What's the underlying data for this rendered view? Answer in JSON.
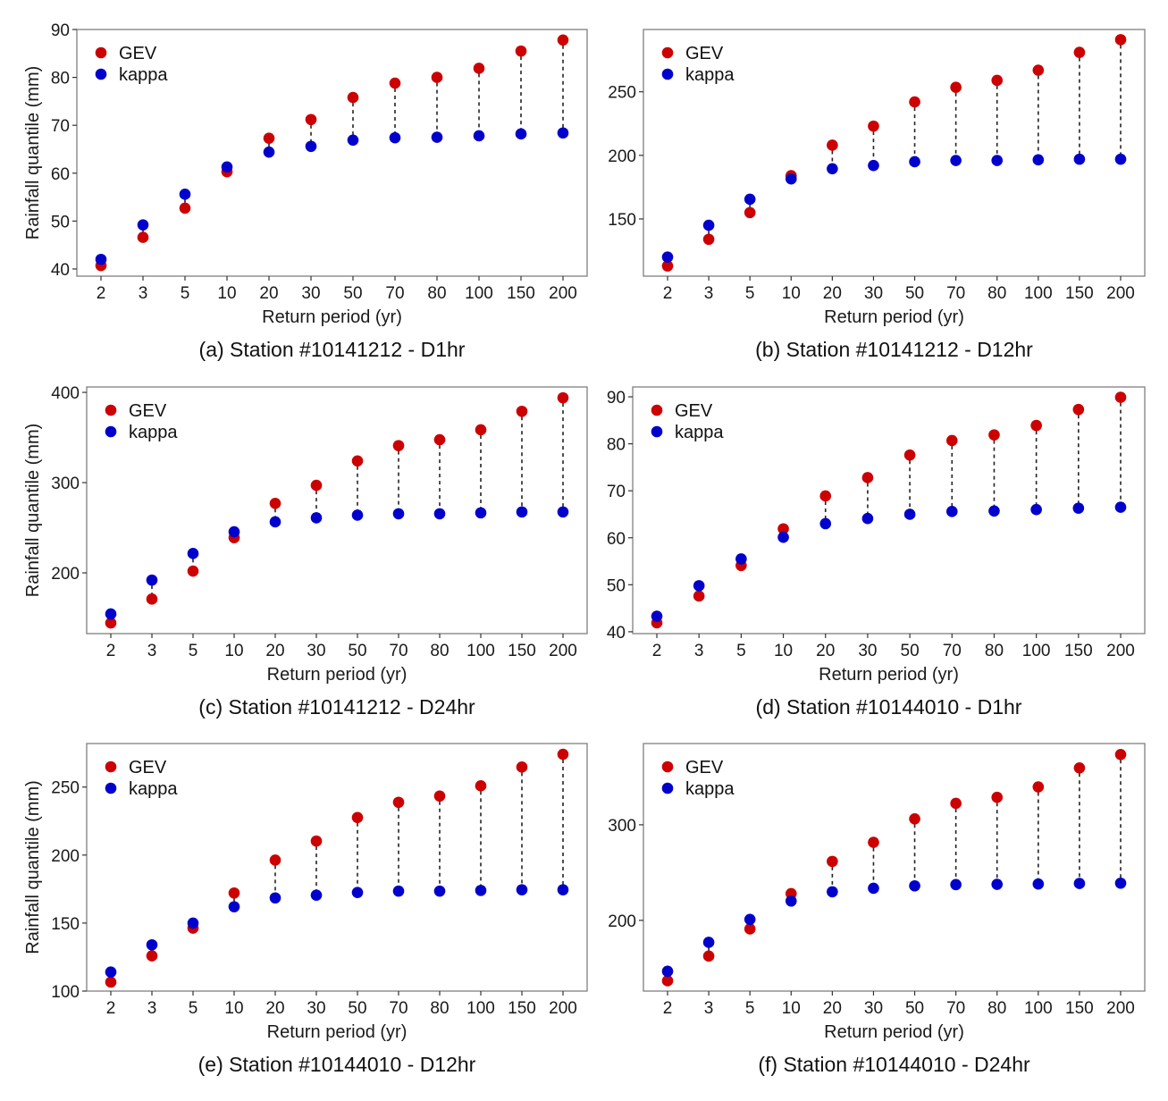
{
  "figure": {
    "x_axis_title": "Return period (yr)",
    "y_axis_title": "Rainfall quantile (mm)",
    "legend": [
      {
        "label": "GEV",
        "color": "#CC0000"
      },
      {
        "label": "kappa",
        "color": "#0000CC"
      }
    ],
    "connector_style": "dashed",
    "connector_color": "#222222"
  },
  "chart_data": [
    {
      "type": "scatter",
      "id": "a",
      "title": "(a) Station #10141212 - D1hr",
      "xlabel": "Return period (yr)",
      "ylabel": "Rainfall quantile (mm)",
      "show_ylabel": true,
      "categories": [
        "2",
        "3",
        "5",
        "10",
        "20",
        "30",
        "50",
        "70",
        "80",
        "100",
        "150",
        "200"
      ],
      "ylim": [
        38.5,
        90
      ],
      "yticks": [
        40,
        50,
        60,
        70,
        80,
        90
      ],
      "legend_position": "top-left",
      "grid": false,
      "series": [
        {
          "name": "GEV",
          "color": "#CC0000",
          "values": [
            40.7,
            46.6,
            52.7,
            60.3,
            67.3,
            71.2,
            75.8,
            78.8,
            80.0,
            81.9,
            85.5,
            87.8
          ]
        },
        {
          "name": "kappa",
          "color": "#0000CC",
          "values": [
            42.0,
            49.2,
            55.6,
            61.3,
            64.4,
            65.6,
            66.9,
            67.4,
            67.5,
            67.8,
            68.2,
            68.4
          ]
        }
      ]
    },
    {
      "type": "scatter",
      "id": "b",
      "title": "(b) Station #10141212 - D12hr",
      "xlabel": "Return period (yr)",
      "ylabel": "",
      "show_ylabel": false,
      "categories": [
        "2",
        "3",
        "5",
        "10",
        "20",
        "30",
        "50",
        "70",
        "80",
        "100",
        "150",
        "200"
      ],
      "ylim": [
        105,
        299
      ],
      "yticks": [
        150,
        200,
        250
      ],
      "legend_position": "top-left",
      "grid": false,
      "series": [
        {
          "name": "GEV",
          "color": "#CC0000",
          "values": [
            113,
            134,
            155,
            184,
            208,
            223,
            242,
            253.5,
            259,
            267,
            281,
            291
          ]
        },
        {
          "name": "kappa",
          "color": "#0000CC",
          "values": [
            120,
            145,
            165.5,
            181.5,
            189.5,
            192,
            195,
            196,
            196,
            196.5,
            197,
            197
          ]
        }
      ]
    },
    {
      "type": "scatter",
      "id": "c",
      "title": "(c) Station #10141212 - D24hr",
      "xlabel": "Return period (yr)",
      "ylabel": "Rainfall quantile (mm)",
      "show_ylabel": true,
      "categories": [
        "2",
        "3",
        "5",
        "10",
        "20",
        "30",
        "50",
        "70",
        "80",
        "100",
        "150",
        "200"
      ],
      "ylim": [
        132.7,
        406
      ],
      "yticks": [
        200,
        300,
        400
      ],
      "legend_position": "top-left",
      "grid": false,
      "series": [
        {
          "name": "GEV",
          "color": "#CC0000",
          "values": [
            144.5,
            171,
            202,
            239,
            277,
            297,
            324,
            341,
            347.5,
            358.5,
            379,
            394
          ]
        },
        {
          "name": "kappa",
          "color": "#0000CC",
          "values": [
            154.5,
            192,
            221.5,
            245.5,
            256.5,
            261,
            264,
            265.5,
            265.5,
            266.5,
            267.5,
            267.5
          ]
        }
      ]
    },
    {
      "type": "scatter",
      "id": "d",
      "title": "(d) Station #10144010 - D1hr",
      "xlabel": "Return period (yr)",
      "ylabel": "",
      "show_ylabel": false,
      "categories": [
        "2",
        "3",
        "5",
        "10",
        "20",
        "30",
        "50",
        "70",
        "80",
        "100",
        "150",
        "200"
      ],
      "ylim": [
        39.6,
        92.1
      ],
      "yticks": [
        40,
        50,
        60,
        70,
        80,
        90
      ],
      "legend_position": "top-left",
      "grid": false,
      "series": [
        {
          "name": "GEV",
          "color": "#CC0000",
          "values": [
            41.9,
            47.6,
            54.1,
            61.9,
            68.9,
            72.8,
            77.6,
            80.7,
            81.9,
            83.9,
            87.3,
            89.9
          ]
        },
        {
          "name": "kappa",
          "color": "#0000CC",
          "values": [
            43.3,
            49.8,
            55.5,
            60.1,
            63.0,
            64.1,
            65.0,
            65.6,
            65.7,
            66.0,
            66.3,
            66.5
          ]
        }
      ]
    },
    {
      "type": "scatter",
      "id": "e",
      "title": "(e) Station #10144010 - D12hr",
      "xlabel": "Return period (yr)",
      "ylabel": "Rainfall quantile (mm)",
      "show_ylabel": true,
      "categories": [
        "2",
        "3",
        "5",
        "10",
        "20",
        "30",
        "50",
        "70",
        "80",
        "100",
        "150",
        "200"
      ],
      "ylim": [
        100,
        282
      ],
      "yticks": [
        100,
        150,
        200,
        250
      ],
      "legend_position": "top-left",
      "grid": false,
      "series": [
        {
          "name": "GEV",
          "color": "#CC0000",
          "values": [
            106.6,
            125.9,
            146.3,
            172.1,
            196.3,
            210.3,
            227.6,
            238.8,
            243.4,
            250.9,
            264.7,
            274.1
          ]
        },
        {
          "name": "kappa",
          "color": "#0000CC",
          "values": [
            114,
            134,
            150,
            162,
            168.5,
            170.5,
            172.5,
            173.5,
            173.5,
            174,
            174.5,
            174.5
          ]
        }
      ]
    },
    {
      "type": "scatter",
      "id": "f",
      "title": "(f) Station #10144010 - D24hr",
      "xlabel": "Return period (yr)",
      "ylabel": "",
      "show_ylabel": false,
      "categories": [
        "2",
        "3",
        "5",
        "10",
        "20",
        "30",
        "50",
        "70",
        "80",
        "100",
        "150",
        "200"
      ],
      "ylim": [
        126,
        385
      ],
      "yticks": [
        200,
        300
      ],
      "legend_position": "top-left",
      "grid": false,
      "series": [
        {
          "name": "GEV",
          "color": "#CC0000",
          "values": [
            136.8,
            162.6,
            191,
            228,
            261.7,
            281.6,
            306.2,
            322.4,
            328.7,
            339.6,
            359.5,
            373.5
          ]
        },
        {
          "name": "kappa",
          "color": "#0000CC",
          "values": [
            146.7,
            177,
            201,
            220.2,
            229.9,
            233.6,
            236.1,
            237.4,
            237.7,
            238,
            238.6,
            238.9
          ]
        }
      ]
    }
  ]
}
